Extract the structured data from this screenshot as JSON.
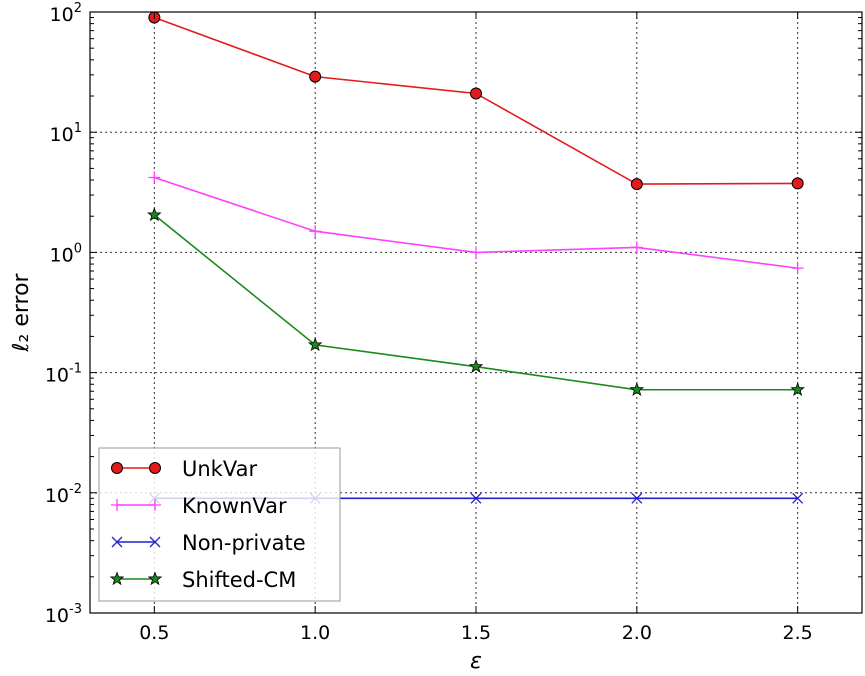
{
  "chart_data": {
    "type": "line",
    "title": "",
    "xlabel": "ε",
    "ylabel": "ℓ₂ error",
    "x_scale": "linear",
    "y_scale": "log",
    "xlim": [
      0.3,
      2.7
    ],
    "ylim": [
      0.001,
      100
    ],
    "x_ticks": [
      0.5,
      1.0,
      1.5,
      2.0,
      2.5
    ],
    "x_tick_labels": [
      "0.5",
      "1.0",
      "1.5",
      "2.0",
      "2.5"
    ],
    "y_ticks": [
      0.001,
      0.01,
      0.1,
      1,
      10,
      100
    ],
    "y_tick_labels": [
      {
        "base": "10",
        "exp": "-3"
      },
      {
        "base": "10",
        "exp": "-2"
      },
      {
        "base": "10",
        "exp": "-1"
      },
      {
        "base": "10",
        "exp": "0"
      },
      {
        "base": "10",
        "exp": "1"
      },
      {
        "base": "10",
        "exp": "2"
      }
    ],
    "grid": true,
    "legend_position": "lower-left",
    "series": [
      {
        "name": "UnkVar",
        "color": "#e41a1c",
        "marker": "circle",
        "x": [
          0.5,
          1.0,
          1.5,
          2.0,
          2.5
        ],
        "y": [
          90,
          29,
          21,
          3.7,
          3.75
        ]
      },
      {
        "name": "KnownVar",
        "color": "#ff40ff",
        "marker": "plus",
        "x": [
          0.5,
          1.0,
          1.5,
          2.0,
          2.5
        ],
        "y": [
          4.2,
          1.5,
          1.0,
          1.1,
          0.74
        ]
      },
      {
        "name": "Non-private",
        "color": "#2222cc",
        "marker": "x",
        "x": [
          0.5,
          1.0,
          1.5,
          2.0,
          2.5
        ],
        "y": [
          0.009,
          0.009,
          0.009,
          0.009,
          0.009
        ]
      },
      {
        "name": "Shifted-CM",
        "color": "#1a8a1a",
        "marker": "star",
        "x": [
          0.5,
          1.0,
          1.5,
          2.0,
          2.5
        ],
        "y": [
          2.05,
          0.17,
          0.112,
          0.072,
          0.072
        ]
      }
    ]
  }
}
